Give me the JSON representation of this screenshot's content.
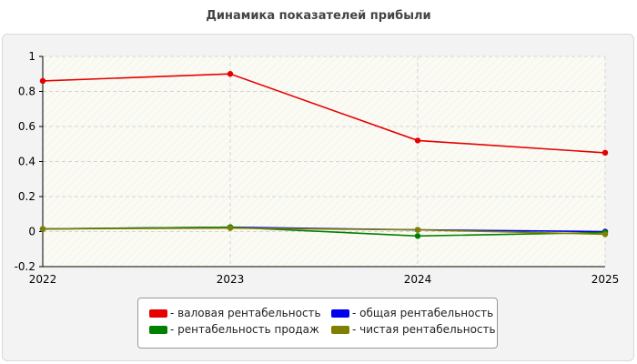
{
  "chart_data": {
    "type": "line",
    "title": "Динамика показателей прибыли",
    "x": [
      "2022",
      "2023",
      "2024",
      "2025"
    ],
    "ylim": [
      -0.2,
      1
    ],
    "yticks": [
      "-0.2",
      "0",
      "0.2",
      "0.4",
      "0.6",
      "0.8",
      "1"
    ],
    "grid": true,
    "legend_position": "bottom",
    "series": [
      {
        "name": "- валовая рентабельность",
        "color": "#e60000",
        "values": [
          0.86,
          0.9,
          0.52,
          0.45
        ]
      },
      {
        "name": "- общая рентабельность",
        "color": "#0000ee",
        "values": [
          0.015,
          0.025,
          0.01,
          0.0
        ]
      },
      {
        "name": "- рентабельность продаж",
        "color": "#008000",
        "values": [
          0.015,
          0.025,
          -0.025,
          -0.005
        ]
      },
      {
        "name": "- чистая рентабельность",
        "color": "#808000",
        "values": [
          0.015,
          0.02,
          0.01,
          -0.015
        ]
      }
    ]
  }
}
